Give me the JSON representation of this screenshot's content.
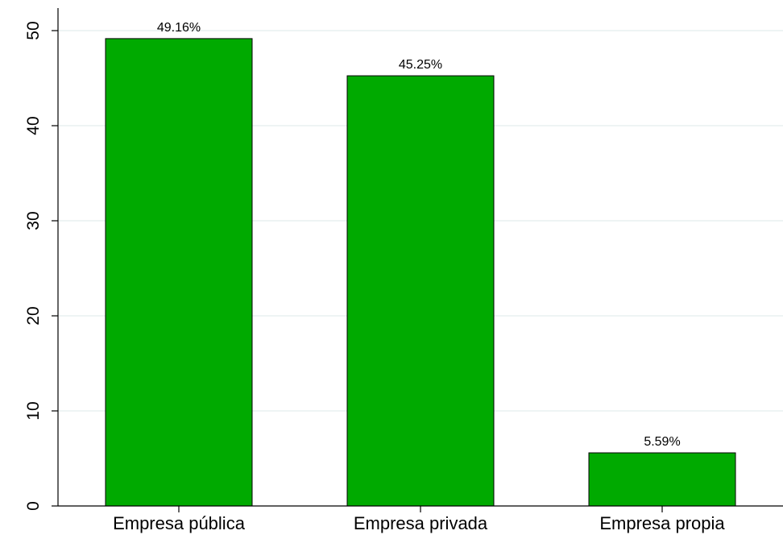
{
  "chart_data": {
    "type": "bar",
    "title": "",
    "xlabel": "",
    "ylabel": "",
    "categories": [
      "Empresa pública",
      "Empresa privada",
      "Empresa propia"
    ],
    "values": [
      49.16,
      45.25,
      5.59
    ],
    "data_labels": [
      "49.16%",
      "45.25%",
      "5.59%"
    ],
    "ylim": [
      0,
      50
    ],
    "yticks": [
      0,
      10,
      20,
      30,
      40,
      50
    ],
    "ytick_labels": [
      "0",
      "10",
      "20",
      "30",
      "40",
      "50"
    ],
    "grid": true,
    "legend": "none",
    "colors": {
      "bar_fill": "#00aa00",
      "bar_stroke": "#000000",
      "grid": "#e9f0f0",
      "axis": "#000000",
      "background": "#ffffff"
    }
  }
}
